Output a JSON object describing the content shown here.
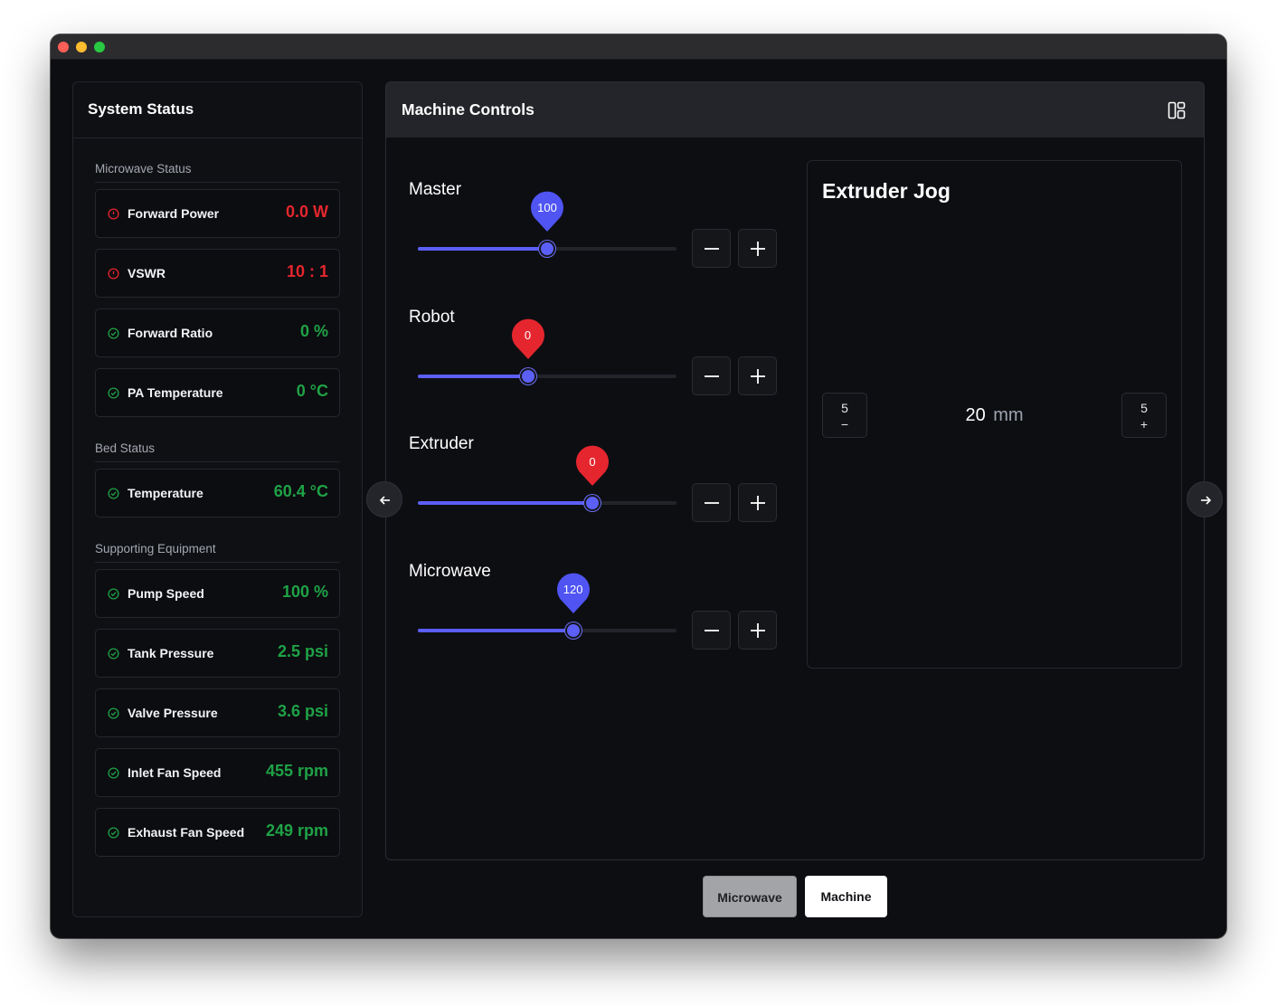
{
  "status": {
    "title": "System Status",
    "sections": [
      {
        "title": "Microwave Status",
        "items": [
          {
            "label": "Forward Power",
            "value": "0.0 W",
            "state": "error"
          },
          {
            "label": "VSWR",
            "value": "10 : 1",
            "state": "error"
          },
          {
            "label": "Forward Ratio",
            "value": "0 %",
            "state": "ok"
          },
          {
            "label": "PA Temperature",
            "value": "0 °C",
            "state": "ok"
          }
        ]
      },
      {
        "title": "Bed Status",
        "items": [
          {
            "label": "Temperature",
            "value": "60.4 °C",
            "state": "ok"
          }
        ]
      },
      {
        "title": "Supporting Equipment",
        "items": [
          {
            "label": "Pump Speed",
            "value": "100 %",
            "state": "ok"
          },
          {
            "label": "Tank Pressure",
            "value": "2.5 psi",
            "state": "ok"
          },
          {
            "label": "Valve Pressure",
            "value": "3.6 psi",
            "state": "ok"
          },
          {
            "label": "Inlet Fan Speed",
            "value": "455 rpm",
            "state": "ok"
          },
          {
            "label": "Exhaust Fan Speed",
            "value": "249 rpm",
            "state": "ok"
          }
        ]
      }
    ]
  },
  "controls": {
    "title": "Machine Controls",
    "sliders": [
      {
        "label": "Master",
        "value": "100",
        "level": 0.5,
        "pin_color": "#4f54f3"
      },
      {
        "label": "Robot",
        "value": "0",
        "level": 0.425,
        "pin_color": "#e5262e"
      },
      {
        "label": "Extruder",
        "value": "0",
        "level": 0.675,
        "pin_color": "#e5262e"
      },
      {
        "label": "Microwave",
        "value": "120",
        "level": 0.6,
        "pin_color": "#4f54f3"
      }
    ],
    "jog": {
      "title": "Extruder Jog",
      "value": "20",
      "unit": "mm",
      "minus_step": "5",
      "minus_symbol": "−",
      "plus_step": "5",
      "plus_symbol": "+"
    }
  },
  "tabs": [
    {
      "label": "Microwave",
      "active": false
    },
    {
      "label": "Machine",
      "active": true
    }
  ],
  "colors": {
    "accent": "#5b5ff6",
    "error": "#e5262e",
    "ok": "#1fa247"
  }
}
